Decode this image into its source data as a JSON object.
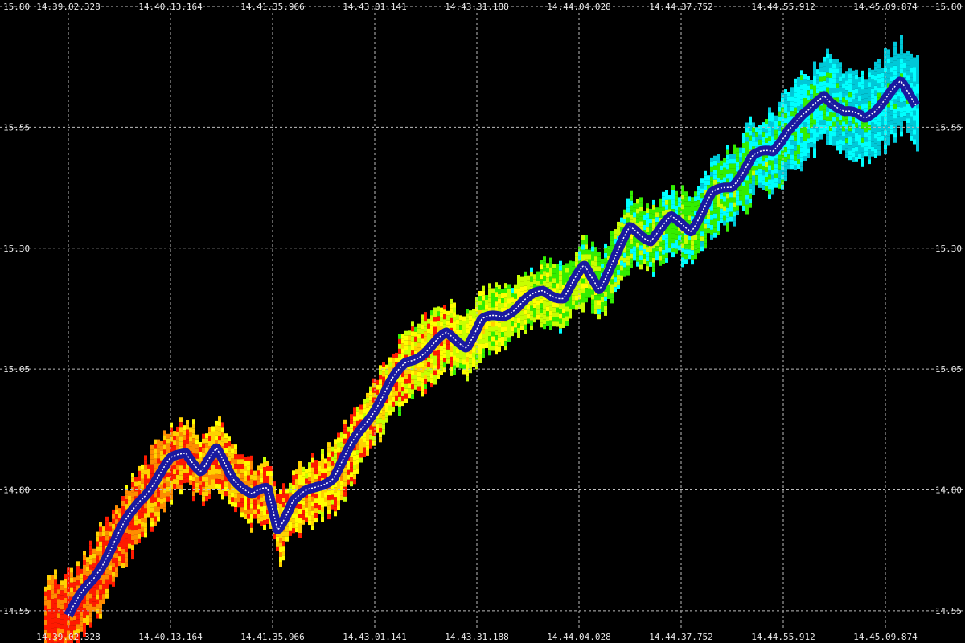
{
  "chart_data": {
    "type": "heatmap",
    "title": "",
    "xlabel": "",
    "ylabel": "",
    "x_ticks": [
      "14.39.02.328",
      "14.40.13.164",
      "14.41.35.966",
      "14.43.01.141",
      "14.43.31.188",
      "14.44.04.028",
      "14.44.37.752",
      "14.44.55.912",
      "14.45.09.874"
    ],
    "y_ticks": [
      15.8,
      15.55,
      15.3,
      15.05,
      14.8,
      14.55
    ],
    "y_tick_labels": [
      "15.80",
      "15.55",
      "15.30",
      "15.05",
      "14.80",
      "14.55"
    ],
    "ylim": [
      14.5,
      15.8
    ],
    "grid": true,
    "colors": {
      "background": "#000000",
      "grid": "#bdbdbd",
      "tick_text": "#e8e8e8",
      "center_line": "#1a1aa0",
      "center_highlight": "#ffffff",
      "band_palette": [
        "#ff1a00",
        "#ff8c00",
        "#ffd200",
        "#ffff00",
        "#c8ff00",
        "#33ee00",
        "#00ffff",
        "#00c8d8"
      ]
    },
    "center_series": [
      {
        "x": 0.0,
        "y": 14.54
      },
      {
        "x": 0.25,
        "y": 14.62
      },
      {
        "x": 0.5,
        "y": 14.71
      },
      {
        "x": 0.7,
        "y": 14.78
      },
      {
        "x": 0.85,
        "y": 14.82
      },
      {
        "x": 1.0,
        "y": 14.86
      },
      {
        "x": 1.15,
        "y": 14.88
      },
      {
        "x": 1.3,
        "y": 14.84
      },
      {
        "x": 1.45,
        "y": 14.88
      },
      {
        "x": 1.6,
        "y": 14.83
      },
      {
        "x": 1.8,
        "y": 14.79
      },
      {
        "x": 1.95,
        "y": 14.8
      },
      {
        "x": 2.05,
        "y": 14.72
      },
      {
        "x": 2.2,
        "y": 14.78
      },
      {
        "x": 2.4,
        "y": 14.8
      },
      {
        "x": 2.6,
        "y": 14.83
      },
      {
        "x": 2.8,
        "y": 14.9
      },
      {
        "x": 3.0,
        "y": 14.97
      },
      {
        "x": 3.15,
        "y": 15.02
      },
      {
        "x": 3.3,
        "y": 15.06
      },
      {
        "x": 3.5,
        "y": 15.09
      },
      {
        "x": 3.7,
        "y": 15.12
      },
      {
        "x": 3.9,
        "y": 15.1
      },
      {
        "x": 4.05,
        "y": 15.15
      },
      {
        "x": 4.25,
        "y": 15.16
      },
      {
        "x": 4.45,
        "y": 15.19
      },
      {
        "x": 4.65,
        "y": 15.21
      },
      {
        "x": 4.85,
        "y": 15.2
      },
      {
        "x": 5.05,
        "y": 15.26
      },
      {
        "x": 5.2,
        "y": 15.22
      },
      {
        "x": 5.35,
        "y": 15.28
      },
      {
        "x": 5.5,
        "y": 15.34
      },
      {
        "x": 5.7,
        "y": 15.32
      },
      {
        "x": 5.9,
        "y": 15.36
      },
      {
        "x": 6.1,
        "y": 15.34
      },
      {
        "x": 6.3,
        "y": 15.41
      },
      {
        "x": 6.5,
        "y": 15.43
      },
      {
        "x": 6.7,
        "y": 15.49
      },
      {
        "x": 6.9,
        "y": 15.5
      },
      {
        "x": 7.05,
        "y": 15.55
      },
      {
        "x": 7.25,
        "y": 15.58
      },
      {
        "x": 7.4,
        "y": 15.62
      },
      {
        "x": 7.6,
        "y": 15.58
      },
      {
        "x": 7.8,
        "y": 15.57
      },
      {
        "x": 8.0,
        "y": 15.61
      },
      {
        "x": 8.15,
        "y": 15.64
      },
      {
        "x": 8.3,
        "y": 15.6
      }
    ],
    "band_halfwidth": [
      {
        "x": 0.0,
        "value": 0.08
      },
      {
        "x": 1.0,
        "value": 0.07
      },
      {
        "x": 2.0,
        "value": 0.06
      },
      {
        "x": 3.0,
        "value": 0.07
      },
      {
        "x": 4.0,
        "value": 0.06
      },
      {
        "x": 5.0,
        "value": 0.06
      },
      {
        "x": 6.0,
        "value": 0.07
      },
      {
        "x": 7.0,
        "value": 0.08
      },
      {
        "x": 8.3,
        "value": 0.09
      }
    ],
    "x_range": [
      -0.15,
      8.35
    ]
  }
}
